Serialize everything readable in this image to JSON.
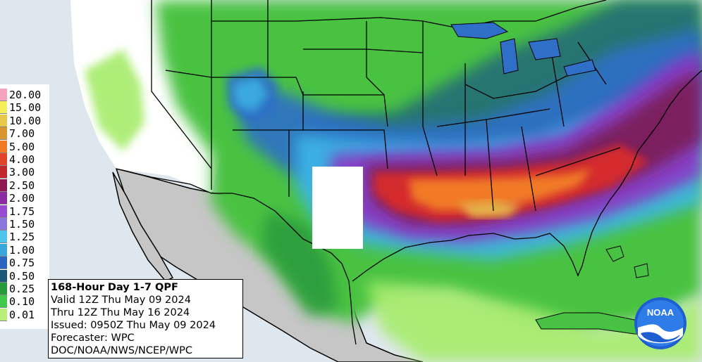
{
  "legend": {
    "items": [
      {
        "label": "20.00",
        "color": "#f4a3bf"
      },
      {
        "label": "15.00",
        "color": "#f4ee5a"
      },
      {
        "label": "10.00",
        "color": "#e8c84a"
      },
      {
        "label": "7.00",
        "color": "#d8962f"
      },
      {
        "label": "5.00",
        "color": "#f07a28"
      },
      {
        "label": "4.00",
        "color": "#e2442a"
      },
      {
        "label": "3.00",
        "color": "#c0282e"
      },
      {
        "label": "2.50",
        "color": "#8c1a4f"
      },
      {
        "label": "2.00",
        "color": "#8c2ca0"
      },
      {
        "label": "1.75",
        "color": "#9a4ad0"
      },
      {
        "label": "1.50",
        "color": "#8a76d8"
      },
      {
        "label": "1.25",
        "color": "#4fc4e8"
      },
      {
        "label": "1.00",
        "color": "#3aa6dc"
      },
      {
        "label": "0.75",
        "color": "#2a66bf"
      },
      {
        "label": "0.50",
        "color": "#1a5a78"
      },
      {
        "label": "0.25",
        "color": "#269a3a"
      },
      {
        "label": "0.10",
        "color": "#42c84a"
      },
      {
        "label": "0.01",
        "color": "#b8ef7a"
      }
    ]
  },
  "info": {
    "title": "168-Hour Day 1-7 QPF",
    "valid": "Valid 12Z Thu May 09 2024",
    "thru": "Thru 12Z Thu May 16 2024",
    "issued": "Issued: 0950Z Thu May 09 2024",
    "forecaster": "Forecaster: WPC",
    "agency": "DOC/NOAA/NWS/NCEP/WPC"
  },
  "logo": {
    "text": "NOAA"
  },
  "colors": {
    "ocean": "#dfe7ee",
    "mexico": "#c6c6c6",
    "dry_land": "#ffffff",
    "light_green": "#a6ec6a",
    "green": "#48c243",
    "dark_green": "#2a9a3c",
    "teal": "#20687a",
    "blue": "#2f6fc8",
    "light_blue": "#3cb6e6",
    "purple": "#8a3bc4",
    "magenta": "#7a1f55",
    "red": "#d32b2e",
    "orange": "#f07a28",
    "gold": "#e4b04a"
  }
}
